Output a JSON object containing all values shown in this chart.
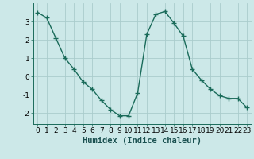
{
  "x": [
    0,
    1,
    2,
    3,
    4,
    5,
    6,
    7,
    8,
    9,
    10,
    11,
    12,
    13,
    14,
    15,
    16,
    17,
    18,
    19,
    20,
    21,
    22,
    23
  ],
  "y": [
    3.5,
    3.2,
    2.1,
    1.0,
    0.4,
    -0.3,
    -0.7,
    -1.3,
    -1.8,
    -2.15,
    -2.15,
    -0.9,
    2.3,
    3.4,
    3.55,
    2.9,
    2.2,
    0.4,
    -0.2,
    -0.7,
    -1.05,
    -1.2,
    -1.2,
    -1.7
  ],
  "line_color": "#1a6b5a",
  "marker": "+",
  "marker_size": 4,
  "marker_linewidth": 1.0,
  "linewidth": 1.0,
  "xlabel": "Humidex (Indice chaleur)",
  "xlim": [
    -0.5,
    23.5
  ],
  "ylim": [
    -2.6,
    4.0
  ],
  "yticks": [
    -2,
    -1,
    0,
    1,
    2,
    3
  ],
  "xticks": [
    0,
    1,
    2,
    3,
    4,
    5,
    6,
    7,
    8,
    9,
    10,
    11,
    12,
    13,
    14,
    15,
    16,
    17,
    18,
    19,
    20,
    21,
    22,
    23
  ],
  "background_color": "#cce8e8",
  "grid_color": "#aacccc",
  "xlabel_fontsize": 7.5,
  "tick_fontsize": 6.5
}
